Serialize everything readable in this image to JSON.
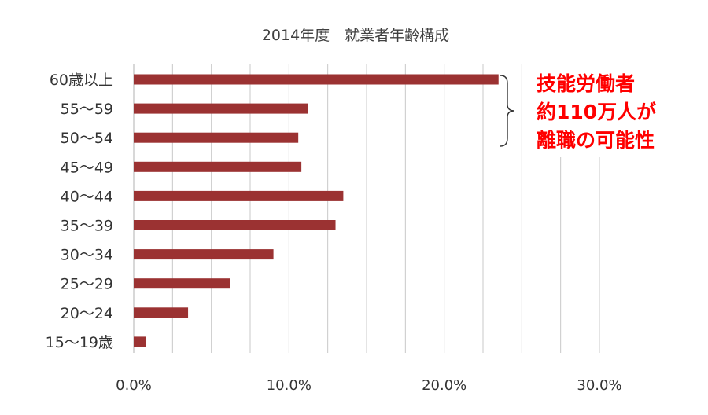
{
  "chart_data": {
    "type": "bar",
    "orientation": "horizontal",
    "title": "2014年度　就業者年齢構成",
    "categories": [
      "60歳以上",
      "55～59",
      "50～54",
      "45～49",
      "40～44",
      "35～39",
      "30～34",
      "25～29",
      "20～24",
      "15～19歳"
    ],
    "values": [
      23.5,
      11.2,
      10.6,
      10.8,
      13.5,
      13.0,
      9.0,
      6.2,
      3.5,
      0.8
    ],
    "xlim": [
      0,
      30
    ],
    "xticks": [
      "0.0%",
      "10.0%",
      "20.0%",
      "30.0%"
    ],
    "bar_color": "#9b3232",
    "grid": true,
    "annotation": {
      "lines": [
        "技能労働者",
        "約110万人が",
        "離職の可能性"
      ],
      "color": "#ff0000",
      "bracket_categories": [
        "60歳以上",
        "50～54"
      ]
    }
  }
}
